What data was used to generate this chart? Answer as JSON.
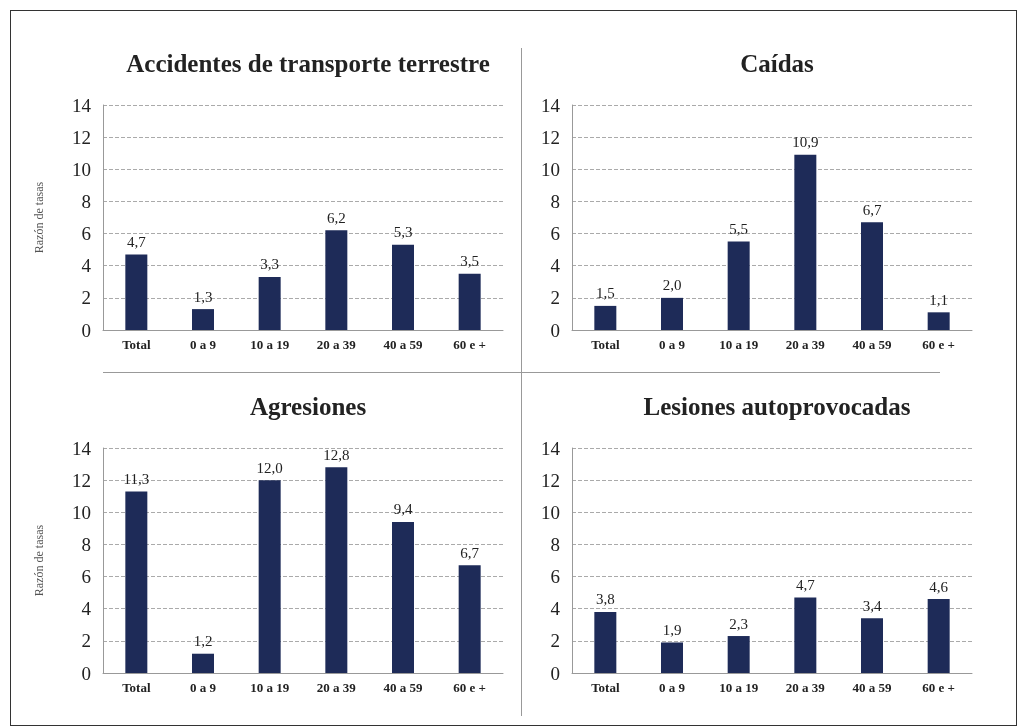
{
  "chart_data": [
    {
      "type": "bar",
      "title": "Accidentes de transporte terrestre",
      "ylabel": "Razón de tasas",
      "categories": [
        "Total",
        "0 a 9",
        "10 a 19",
        "20 a 39",
        "40 a 59",
        "60 e +"
      ],
      "values": [
        4.7,
        1.3,
        3.3,
        6.2,
        5.3,
        3.5
      ],
      "value_labels": [
        "4,7",
        "1,3",
        "3,3",
        "6,2",
        "5,3",
        "3,5"
      ],
      "color": "#1e2b58",
      "ylim": [
        0,
        14
      ],
      "yticks": [
        0,
        2,
        4,
        6,
        8,
        10,
        12,
        14
      ],
      "grid": "y"
    },
    {
      "type": "bar",
      "title": "Caídas",
      "categories": [
        "Total",
        "0 a 9",
        "10 a 19",
        "20 a 39",
        "40 a 59",
        "60 e +"
      ],
      "values": [
        1.5,
        2.0,
        5.5,
        10.9,
        6.7,
        1.1
      ],
      "value_labels": [
        "1,5",
        "2,0",
        "5,5",
        "10,9",
        "6,7",
        "1,1"
      ],
      "color": "#1e2b58",
      "ylim": [
        0,
        14
      ],
      "yticks": [
        0,
        2,
        4,
        6,
        8,
        10,
        12,
        14
      ],
      "grid": "y"
    },
    {
      "type": "bar",
      "title": "Agresiones",
      "ylabel": "Razón de tasas",
      "categories": [
        "Total",
        "0 a 9",
        "10 a 19",
        "20 a 39",
        "40 a 59",
        "60 e +"
      ],
      "values": [
        11.3,
        1.2,
        12.0,
        12.8,
        9.4,
        6.7
      ],
      "value_labels": [
        "11,3",
        "1,2",
        "12,0",
        "12,8",
        "9,4",
        "6,7"
      ],
      "color": "#1e2b58",
      "ylim": [
        0,
        14
      ],
      "yticks": [
        0,
        2,
        4,
        6,
        8,
        10,
        12,
        14
      ],
      "grid": "y"
    },
    {
      "type": "bar",
      "title": "Lesiones autoprovocadas",
      "categories": [
        "Total",
        "0 a 9",
        "10 a 19",
        "20 a 39",
        "40 a 59",
        "60 e +"
      ],
      "values": [
        3.8,
        1.9,
        2.3,
        4.7,
        3.4,
        4.6
      ],
      "value_labels": [
        "3,8",
        "1,9",
        "2,3",
        "4,7",
        "3,4",
        "4,6"
      ],
      "color": "#1e2b58",
      "ylim": [
        0,
        14
      ],
      "yticks": [
        0,
        2,
        4,
        6,
        8,
        10,
        12,
        14
      ],
      "grid": "y"
    }
  ]
}
